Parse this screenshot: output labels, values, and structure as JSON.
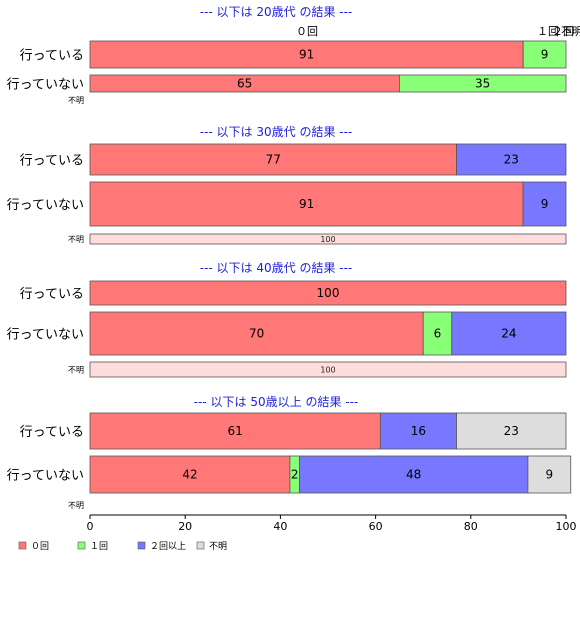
{
  "chart_data": {
    "type": "bar",
    "orientation": "horizontal",
    "stacked": true,
    "xlim": [
      0,
      100
    ],
    "x_ticks": [
      "0",
      "20",
      "40",
      "60",
      "80",
      "100"
    ],
    "legend": {
      "placement": "bottom-left",
      "entries": [
        {
          "label": "０回",
          "color": "#ff7777"
        },
        {
          "label": "１回",
          "color": "#88ff77"
        },
        {
          "label": "２回以上",
          "color": "#7777ff"
        },
        {
          "label": "不明",
          "color": "#dddddd"
        }
      ]
    },
    "top_labels": [
      "０回",
      "１回",
      "２回",
      "不明"
    ],
    "panels": [
      {
        "title": "--- 以下は 20歳代 の結果 ---",
        "rows": [
          {
            "label": "行っている",
            "values": [
              91,
              9,
              0,
              0
            ]
          },
          {
            "label": "行っていない",
            "values": [
              65,
              35,
              0,
              0
            ]
          },
          {
            "label": "不明",
            "values": [
              0,
              0,
              0,
              0
            ]
          }
        ]
      },
      {
        "title": "--- 以下は 30歳代 の結果 ---",
        "rows": [
          {
            "label": "行っている",
            "values": [
              77,
              0,
              23,
              0
            ]
          },
          {
            "label": "行っていない",
            "values": [
              91,
              0,
              9,
              0
            ]
          },
          {
            "label": "不明",
            "values": [
              100,
              0,
              0,
              0
            ],
            "light": true
          }
        ]
      },
      {
        "title": "--- 以下は 40歳代 の結果 ---",
        "rows": [
          {
            "label": "行っている",
            "values": [
              100,
              0,
              0,
              0
            ]
          },
          {
            "label": "行っていない",
            "values": [
              70,
              6,
              24,
              0
            ]
          },
          {
            "label": "不明",
            "values": [
              100,
              0,
              0,
              0
            ],
            "light": true
          }
        ]
      },
      {
        "title": "--- 以下は 50歳以上 の結果 ---",
        "rows": [
          {
            "label": "行っている",
            "values": [
              61,
              0,
              16,
              23
            ]
          },
          {
            "label": "行っていない",
            "values": [
              42,
              2,
              48,
              9
            ]
          },
          {
            "label": "不明",
            "values": [
              0,
              0,
              0,
              0
            ]
          }
        ]
      }
    ]
  }
}
